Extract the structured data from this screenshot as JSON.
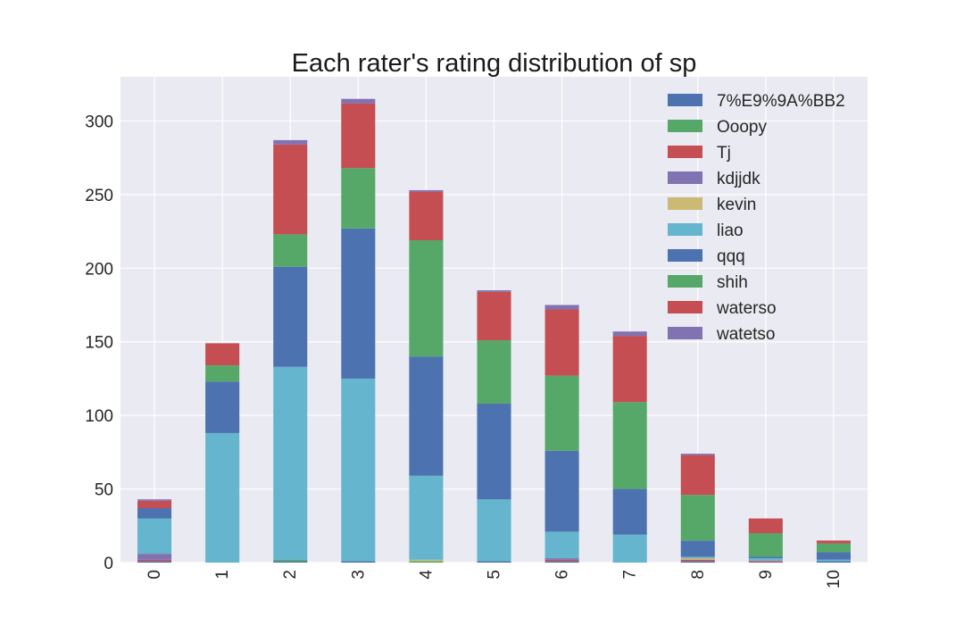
{
  "chart_data": {
    "type": "bar",
    "stacked": true,
    "title": "Each rater's rating distribution of sp",
    "xlabel": "",
    "ylabel": "",
    "categories": [
      "0",
      "1",
      "2",
      "3",
      "4",
      "5",
      "6",
      "7",
      "8",
      "9",
      "10"
    ],
    "ylim": [
      0,
      330
    ],
    "yticks": [
      0,
      50,
      100,
      150,
      200,
      250,
      300
    ],
    "grid": true,
    "legend_position": "top-right",
    "series": [
      {
        "name": "7%E9%9A%BB2",
        "color": "#4c72b0",
        "values": [
          1,
          0,
          1,
          1,
          0,
          1,
          1,
          0,
          1,
          0,
          1
        ]
      },
      {
        "name": "Ooopy",
        "color": "#55a868",
        "values": [
          0,
          0,
          1,
          0,
          1,
          0,
          0,
          0,
          0,
          0,
          0
        ]
      },
      {
        "name": "Tj",
        "color": "#c44e52",
        "values": [
          1,
          0,
          0,
          0,
          0,
          0,
          1,
          0,
          1,
          1,
          0
        ]
      },
      {
        "name": "kdjjdk",
        "color": "#8172b2",
        "values": [
          4,
          0,
          0,
          0,
          0,
          0,
          1,
          0,
          0,
          0,
          0
        ]
      },
      {
        "name": "kevin",
        "color": "#ccb974",
        "values": [
          0,
          0,
          0,
          0,
          1,
          0,
          0,
          0,
          1,
          0,
          0
        ]
      },
      {
        "name": "liao",
        "color": "#64b5cd",
        "values": [
          24,
          88,
          131,
          124,
          57,
          42,
          18,
          19,
          1,
          2,
          1
        ]
      },
      {
        "name": "qqq",
        "color": "#4c72b0",
        "values": [
          7,
          35,
          68,
          102,
          81,
          65,
          55,
          31,
          11,
          1,
          5
        ]
      },
      {
        "name": "shih",
        "color": "#55a868",
        "values": [
          0,
          11,
          22,
          41,
          79,
          43,
          51,
          59,
          31,
          16,
          6
        ]
      },
      {
        "name": "waterso",
        "color": "#c44e52",
        "values": [
          5,
          15,
          61,
          44,
          33,
          33,
          45,
          45,
          27,
          10,
          2
        ]
      },
      {
        "name": "watetso",
        "color": "#8172b2",
        "values": [
          1,
          0,
          3,
          3,
          1,
          1,
          3,
          3,
          1,
          0,
          0
        ]
      }
    ]
  }
}
